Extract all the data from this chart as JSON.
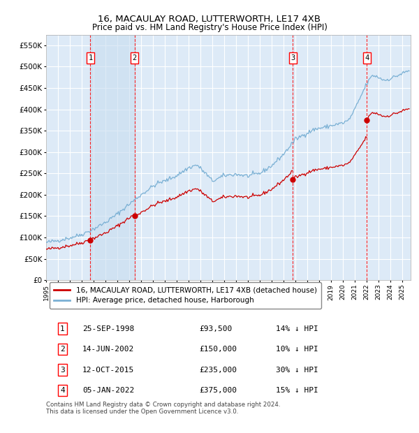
{
  "title": "16, MACAULAY ROAD, LUTTERWORTH, LE17 4XB",
  "subtitle": "Price paid vs. HM Land Registry's House Price Index (HPI)",
  "ylim": [
    0,
    575000
  ],
  "yticks": [
    0,
    50000,
    100000,
    150000,
    200000,
    250000,
    300000,
    350000,
    400000,
    450000,
    500000,
    550000
  ],
  "xlim_start": 1995.0,
  "xlim_end": 2025.7,
  "background_color": "#ddeaf7",
  "grid_color": "#ffffff",
  "sale_color": "#cc0000",
  "hpi_color": "#7ab0d4",
  "sale_label": "16, MACAULAY ROAD, LUTTERWORTH, LE17 4XB (detached house)",
  "hpi_label": "HPI: Average price, detached house, Harborough",
  "sales": [
    {
      "num": 1,
      "date": "25-SEP-1998",
      "year": 1998.73,
      "price": 93500,
      "pct": "14% ↓ HPI"
    },
    {
      "num": 2,
      "date": "14-JUN-2002",
      "year": 2002.45,
      "price": 150000,
      "pct": "10% ↓ HPI"
    },
    {
      "num": 3,
      "date": "12-OCT-2015",
      "year": 2015.78,
      "price": 235000,
      "pct": "30% ↓ HPI"
    },
    {
      "num": 4,
      "date": "05-JAN-2022",
      "year": 2022.02,
      "price": 375000,
      "pct": "15% ↓ HPI"
    }
  ],
  "footer": "Contains HM Land Registry data © Crown copyright and database right 2024.\nThis data is licensed under the Open Government Licence v3.0.",
  "xticks": [
    1995,
    1996,
    1997,
    1998,
    1999,
    2000,
    2001,
    2002,
    2003,
    2004,
    2005,
    2006,
    2007,
    2008,
    2009,
    2010,
    2011,
    2012,
    2013,
    2014,
    2015,
    2016,
    2017,
    2018,
    2019,
    2020,
    2021,
    2022,
    2023,
    2024,
    2025
  ]
}
